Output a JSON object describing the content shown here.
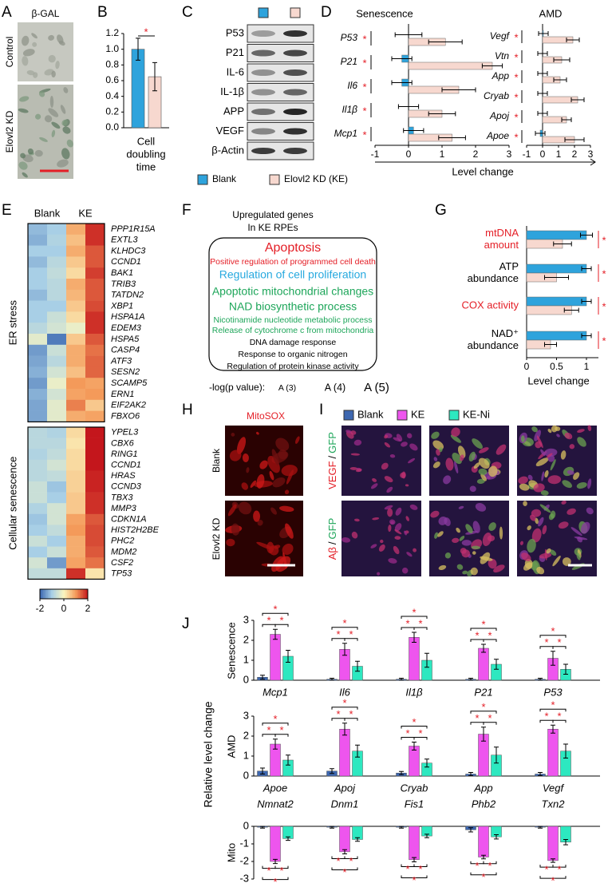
{
  "figure": {
    "letters": [
      "A",
      "B",
      "C",
      "D",
      "E",
      "F",
      "G",
      "H",
      "I",
      "J"
    ],
    "A": {
      "title": "β-GAL",
      "rows": [
        "Control",
        "Elovl2 KD"
      ]
    },
    "C": {
      "blots": [
        "P53",
        "P21",
        "IL-6",
        "IL-1β",
        "APP",
        "VEGF",
        "β-Actin"
      ]
    },
    "F": {
      "title": [
        "Upregulated genes",
        "In KE RPEs"
      ],
      "items": [
        {
          "text": "Apoptosis",
          "color": "#e41e26"
        },
        {
          "text": "Positive regulation of programmed cell death",
          "color": "#e41e26"
        },
        {
          "text": "Regulation of cell proliferation",
          "color": "#27a9df"
        },
        {
          "text": "Apoptotic mitochondrial changes",
          "color": "#1ea65a"
        },
        {
          "text": "NAD biosynthetic process",
          "color": "#1ea65a"
        },
        {
          "text": "Nicotinamide nucleotide metabolic process",
          "color": "#1ea65a"
        },
        {
          "text": "Release of cytochrome c from mitochondria",
          "color": "#1ea65a"
        },
        {
          "text": "DNA damage response",
          "color": "#000000"
        },
        {
          "text": "Response to organic nitrogen",
          "color": "#000000"
        },
        {
          "text": "Regulation of protein kinase activity",
          "color": "#000000"
        }
      ],
      "legend_label": "-log(p value):",
      "legend_items": [
        "A (3)",
        "A (4)",
        "A (5)"
      ]
    },
    "H": {
      "title": "MitoSOX",
      "rows": [
        "Blank",
        "Elovl2 KD"
      ]
    },
    "I": {
      "rows": [
        [
          "VEGF",
          "/",
          "GFP"
        ],
        [
          "Aβ",
          "/",
          "GFP"
        ]
      ]
    }
  },
  "chart_data": [
    {
      "type": "bar",
      "xlabel": [
        "Cell",
        "doubling",
        "time"
      ],
      "values": [
        1.0,
        0.65
      ],
      "errors": [
        0.14,
        0.18
      ],
      "colors": [
        "#2ea3dc",
        "#f7d8cf"
      ],
      "ylim": [
        0,
        1.2
      ],
      "yticks": [
        {
          "value": 0,
          "label": "0.0"
        },
        0.2,
        0.4,
        0.6,
        0.8,
        {
          "value": 1,
          "label": "1.0"
        },
        1.2
      ],
      "significance": "*"
    },
    {
      "type": "hbar",
      "title": "Senescence",
      "categories": [
        "P53",
        "P21",
        "Il6",
        "Il1β",
        "Mcp1"
      ],
      "series": [
        {
          "name": "Blank",
          "color": "#2ea3dc",
          "values": [
            0,
            -0.2,
            -0.2,
            0,
            0.15
          ],
          "errors": [
            0.4,
            0.3,
            0.3,
            0.3,
            0.3
          ]
        },
        {
          "name": "Elovl2 KD (KE)",
          "color": "#f7d8cf",
          "values": [
            1.1,
            2.5,
            1.5,
            1.0,
            1.3
          ],
          "errors": [
            0.5,
            0.3,
            0.5,
            0.4,
            0.4
          ]
        }
      ],
      "xlim": [
        -1,
        3
      ],
      "xticks": [
        -1,
        0,
        1,
        2,
        3
      ],
      "xlabel": "Level change",
      "significance": "*"
    },
    {
      "type": "hbar",
      "title": "AMD",
      "categories": [
        "Vegf",
        "Vtn",
        "App",
        "Cryab",
        "Apoj",
        "Apoe"
      ],
      "series": [
        {
          "color": "#2ea3dc",
          "values": [
            0.05,
            0,
            0,
            0,
            0,
            -0.15
          ],
          "errors": [
            0.3,
            0.3,
            0.3,
            0.3,
            0.3,
            0.3
          ]
        },
        {
          "color": "#f7d8cf",
          "values": [
            1.9,
            1.2,
            1.1,
            2.2,
            1.5,
            2.0
          ],
          "errors": [
            0.4,
            0.5,
            0.4,
            0.4,
            0.3,
            0.6
          ]
        }
      ],
      "xlim": [
        -1,
        3
      ],
      "xticks": [
        -1,
        0,
        1,
        2,
        3
      ],
      "significance": "*"
    },
    {
      "type": "heatmap",
      "columns": [
        "Blank",
        "KE"
      ],
      "zlim": [
        -2,
        2
      ],
      "zticks": [
        -2,
        0,
        2
      ],
      "colors": [
        "#3a66b0",
        "#a8cfe6",
        "#fbf6c0",
        "#f49a5a",
        "#c4161c"
      ],
      "groups": [
        {
          "name": "ER stress",
          "rows": [
            "PPP1R15A",
            "EXTL3",
            "KLHDC3",
            "CCND1",
            "BAK1",
            "TRIB3",
            "TATDN2",
            "XBP1",
            "HSPA1A",
            "EDEM3",
            "HSPA5",
            "CASP4",
            "ATF3",
            "SESN2",
            "SCAMP5",
            "ERN1",
            "EIF2AK2",
            "FBXO6"
          ],
          "values": [
            [
              -1.2,
              -1,
              0.8,
              1.8
            ],
            [
              -1.3,
              -0.9,
              0.6,
              1.8
            ],
            [
              -1,
              -1,
              0.8,
              1.5
            ],
            [
              -1.2,
              -0.8,
              0.5,
              1.5
            ],
            [
              -1,
              -0.7,
              0.3,
              1.7
            ],
            [
              -1,
              -0.8,
              0.8,
              1.5
            ],
            [
              -1.2,
              -0.8,
              0.7,
              1.5
            ],
            [
              -1,
              -1,
              0.5,
              1.6
            ],
            [
              -1,
              -0.6,
              0.3,
              1.8
            ],
            [
              -0.8,
              -0.5,
              -0.2,
              1.8
            ],
            [
              -0.3,
              -1.8,
              0.5,
              1.5
            ],
            [
              -1.5,
              -0.6,
              0.8,
              1.3
            ],
            [
              -1.4,
              -0.8,
              0.8,
              1.4
            ],
            [
              -1.3,
              -0.5,
              0.6,
              1.4
            ],
            [
              -1.5,
              -0.2,
              1,
              0.9
            ],
            [
              -1.3,
              -0.5,
              0.9,
              1
            ],
            [
              -1.4,
              -0.3,
              1.2,
              0.5
            ],
            [
              -1.4,
              -0.3,
              0.8,
              0.9
            ]
          ]
        },
        {
          "name": "Cellular senescence",
          "rows": [
            "YPEL3",
            "CBX6",
            "RING1",
            "CCND1",
            "HRAS",
            "CCND3",
            "TBX3",
            "MMP3",
            "CDKN1A",
            "HIST2H2BE",
            "PHC2",
            "MDM2",
            "CSF2",
            "TP53"
          ],
          "values": [
            [
              -0.8,
              -0.9,
              0.3,
              2
            ],
            [
              -0.8,
              -0.8,
              0.2,
              2
            ],
            [
              -0.9,
              -0.7,
              0.3,
              2
            ],
            [
              -0.8,
              -0.5,
              0.3,
              2
            ],
            [
              -0.8,
              -0.7,
              0.4,
              1.9
            ],
            [
              -0.6,
              -1.1,
              0.4,
              1.9
            ],
            [
              -0.6,
              -1,
              0.5,
              1.8
            ],
            [
              -0.9,
              -0.5,
              0.5,
              1.8
            ],
            [
              -1.1,
              -0.5,
              0.9,
              1.5
            ],
            [
              -1,
              -0.7,
              1,
              1.6
            ],
            [
              -0.6,
              -1,
              0.8,
              1.6
            ],
            [
              -1,
              -0.6,
              0.8,
              1.5
            ],
            [
              -0.5,
              -1.5,
              0.9,
              1.3
            ],
            [
              -0.7,
              -0.7,
              1.8,
              0.2
            ]
          ]
        }
      ]
    },
    {
      "type": "hbar",
      "categories": [
        [
          "mtDNA",
          "amount"
        ],
        [
          "ATP",
          "abundance"
        ],
        [
          "COX activity"
        ],
        [
          "NAD⁺",
          "abundance"
        ]
      ],
      "category_colors": [
        "#e41e26",
        "#000000",
        "#e41e26",
        "#000000"
      ],
      "series": [
        {
          "color": "#2ea3dc",
          "values": [
            1,
            1,
            1,
            1
          ],
          "errors": [
            0.1,
            0.08,
            0.08,
            0.08
          ]
        },
        {
          "color": "#f7d8cf",
          "values": [
            0.6,
            0.5,
            0.75,
            0.4
          ],
          "errors": [
            0.15,
            0.2,
            0.12,
            0.1
          ]
        }
      ],
      "xlim": [
        0,
        1.2
      ],
      "xticks": [
        0,
        0.5,
        1
      ],
      "xlabel": "Level change",
      "significance": "*"
    },
    {
      "type": "bar",
      "group_label": "Senescence",
      "ylabel": "Relative level change",
      "categories": [
        "Mcp1",
        "Il6",
        "Il1β",
        "P21",
        "P53"
      ],
      "series": [
        {
          "name": "Blank",
          "color": "#3d67b0",
          "values": [
            0.15,
            0.05,
            0.05,
            0.05,
            0.05
          ],
          "errors": [
            0.1,
            0.05,
            0.05,
            0.05,
            0.05
          ]
        },
        {
          "name": "KE",
          "color": "#ee55ee",
          "values": [
            2.3,
            1.55,
            2.15,
            1.6,
            1.1
          ],
          "errors": [
            0.25,
            0.3,
            0.25,
            0.2,
            0.35
          ]
        },
        {
          "name": "KE-Ni",
          "color": "#2de8c0",
          "values": [
            1.2,
            0.7,
            1.0,
            0.8,
            0.55
          ],
          "errors": [
            0.3,
            0.25,
            0.35,
            0.25,
            0.25
          ]
        }
      ],
      "ylim": [
        0,
        3
      ],
      "yticks": [
        0,
        1,
        2,
        3
      ],
      "significance": "*"
    },
    {
      "type": "bar",
      "group_label": "AMD",
      "categories": [
        "Apoe",
        "Apoj",
        "Cryab",
        "App",
        "Vegf"
      ],
      "series": [
        {
          "color": "#3d67b0",
          "values": [
            0.25,
            0.25,
            0.15,
            0.1,
            0.1
          ],
          "errors": [
            0.15,
            0.12,
            0.08,
            0.08,
            0.08
          ]
        },
        {
          "color": "#ee55ee",
          "values": [
            1.6,
            2.35,
            1.5,
            2.1,
            2.35
          ],
          "errors": [
            0.25,
            0.3,
            0.2,
            0.35,
            0.2
          ]
        },
        {
          "color": "#2de8c0",
          "values": [
            0.8,
            1.25,
            0.65,
            1.05,
            1.25
          ],
          "errors": [
            0.25,
            0.3,
            0.2,
            0.4,
            0.35
          ]
        }
      ],
      "ylim": [
        0,
        3
      ],
      "yticks": [
        0,
        1,
        2,
        3
      ],
      "significance": "*"
    },
    {
      "type": "bar",
      "group_label": "Mito",
      "categories": [
        "Nmnat2",
        "Dnm1",
        "Fis1",
        "Phb2",
        "Txn2"
      ],
      "series": [
        {
          "color": "#3d67b0",
          "values": [
            -0.05,
            -0.05,
            -0.05,
            -0.2,
            -0.05
          ],
          "errors": [
            0.05,
            0.05,
            0.05,
            0.12,
            0.05
          ]
        },
        {
          "color": "#ee55ee",
          "values": [
            -2.0,
            -1.45,
            -1.9,
            -1.75,
            -1.95
          ],
          "errors": [
            0.12,
            0.12,
            0.12,
            0.1,
            0.1
          ]
        },
        {
          "color": "#2de8c0",
          "values": [
            -0.7,
            -0.75,
            -0.55,
            -0.6,
            -0.9
          ],
          "errors": [
            0.1,
            0.1,
            0.1,
            0.12,
            0.15
          ]
        }
      ],
      "ylim": [
        -3,
        0
      ],
      "yticks": [
        0,
        -1,
        -2,
        -3
      ],
      "significance": "*"
    }
  ]
}
